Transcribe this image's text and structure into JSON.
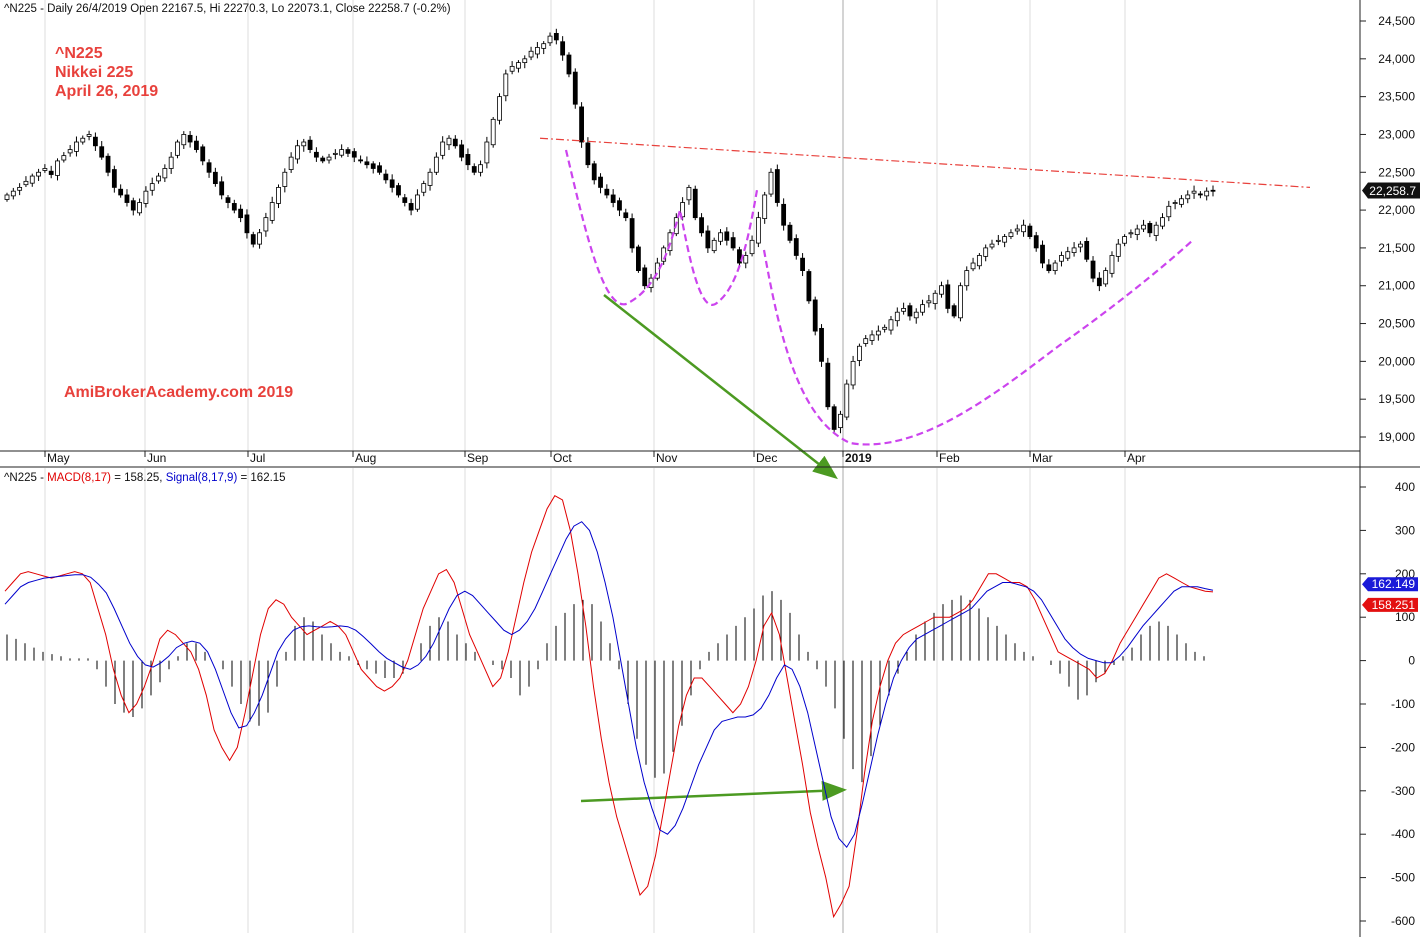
{
  "header": {
    "price": "^N225 - Daily 26/4/2019 Open 22167.5, Hi 22270.3, Lo 22073.1, Close 22258.7 (-0.2%)",
    "macd_prefix": "^N225 - ",
    "macd_name": "MACD(8,17)",
    "macd_value": " = 158.25, ",
    "signal_name": "Signal(8,17,9)",
    "signal_value": " = 162.15"
  },
  "annotations": {
    "ticker": "^N225",
    "name": "Nikkei 225",
    "date": "April 26, 2019",
    "watermark": "AmiBrokerAcademy.com   2019"
  },
  "colors": {
    "macd": "#e00000",
    "signal": "#0000cc",
    "histogram": "#000000",
    "trendline": "#e8413c",
    "cup_curve": "#cc44ee",
    "arrows": "#4c9a22",
    "label_text": "#e8413c"
  },
  "chart_data": [
    {
      "type": "candlestick",
      "title": "^N225 - Daily 26/4/2019",
      "x_labels": [
        "May",
        "Jun",
        "Jul",
        "Aug",
        "Sep",
        "Oct",
        "Nov",
        "Dec",
        "2019",
        "Feb",
        "Mar",
        "Apr"
      ],
      "y_ticks": [
        "19,000",
        "19,500",
        "20,000",
        "20,500",
        "21,000",
        "21,500",
        "22,000",
        "22,500",
        "23,000",
        "23,500",
        "24,000",
        "24,500"
      ],
      "ylim": [
        18800,
        24600
      ],
      "last_close_label": "22,258.7",
      "last_close": 22258.7,
      "closes": [
        22200,
        22250,
        22300,
        22380,
        22450,
        22500,
        22550,
        22470,
        22650,
        22720,
        22800,
        22900,
        22950,
        23000,
        22850,
        22700,
        22500,
        22300,
        22200,
        22100,
        22000,
        22100,
        22250,
        22350,
        22450,
        22550,
        22700,
        22900,
        23000,
        22900,
        22800,
        22650,
        22500,
        22350,
        22200,
        22100,
        22000,
        21900,
        21700,
        21550,
        21700,
        21900,
        22100,
        22300,
        22500,
        22700,
        22850,
        22900,
        22800,
        22700,
        22650,
        22700,
        22750,
        22800,
        22750,
        22700,
        22650,
        22600,
        22550,
        22500,
        22400,
        22300,
        22200,
        22100,
        22000,
        22200,
        22350,
        22500,
        22700,
        22900,
        22950,
        22850,
        22700,
        22600,
        22500,
        22600,
        22900,
        23200,
        23500,
        23800,
        23900,
        23950,
        24000,
        24100,
        24150,
        24200,
        24300,
        24250,
        24050,
        23800,
        23400,
        22900,
        22600,
        22400,
        22300,
        22200,
        22100,
        22000,
        21900,
        21500,
        21200,
        21000,
        21100,
        21300,
        21500,
        21700,
        21900,
        22100,
        22300,
        21900,
        21700,
        21500,
        21600,
        21700,
        21600,
        21500,
        21300,
        21400,
        21600,
        21900,
        22200,
        22500,
        22100,
        21800,
        21600,
        21400,
        21200,
        20800,
        20400,
        20000,
        19400,
        19100,
        19300,
        19700,
        20000,
        20200,
        20300,
        20350,
        20400,
        20450,
        20550,
        20650,
        20700,
        20600,
        20650,
        20750,
        20800,
        20900,
        21000,
        20700,
        20600,
        21000,
        21200,
        21300,
        21400,
        21500,
        21550,
        21600,
        21650,
        21700,
        21750,
        21800,
        21650,
        21500,
        21300,
        21200,
        21300,
        21400,
        21450,
        21500,
        21550,
        21350,
        21100,
        21000,
        21200,
        21400,
        21550,
        21650,
        21700,
        21750,
        21800,
        21700,
        21800,
        21900,
        22050,
        22100,
        22150,
        22200,
        22250,
        22200,
        22250,
        22258.7
      ],
      "horizontal_trendline": {
        "start": 22950,
        "end": 22300
      },
      "cup_annotation": {
        "left_shoulder_low": 20750,
        "head_low": 18900
      },
      "arrow_annotation": {
        "from": 20950,
        "to": 18650
      }
    },
    {
      "type": "line",
      "title": "^N225 - MACD(8,17) = 158.25, Signal(8,17,9) = 162.15",
      "y_ticks": [
        "400",
        "300",
        "200",
        "100",
        "0",
        "-100",
        "-200",
        "-300",
        "-400",
        "-500",
        "-600"
      ],
      "ylim": [
        -620,
        440
      ],
      "series": [
        {
          "name": "MACD(8,17)",
          "last_label": "158.251",
          "last": 158.251,
          "values": [
            160,
            180,
            200,
            205,
            200,
            195,
            190,
            195,
            200,
            205,
            200,
            180,
            120,
            60,
            -20,
            -80,
            -120,
            -100,
            -60,
            -10,
            50,
            70,
            60,
            40,
            20,
            -20,
            -80,
            -160,
            -200,
            -230,
            -200,
            -120,
            -30,
            60,
            120,
            140,
            130,
            100,
            80,
            60,
            70,
            80,
            90,
            80,
            60,
            20,
            -20,
            -40,
            -60,
            -70,
            -60,
            -40,
            0,
            60,
            120,
            160,
            200,
            210,
            180,
            120,
            60,
            20,
            -20,
            -60,
            -40,
            20,
            100,
            180,
            250,
            300,
            350,
            380,
            370,
            300,
            200,
            80,
            -60,
            -180,
            -280,
            -360,
            -420,
            -480,
            -540,
            -520,
            -450,
            -350,
            -250,
            -150,
            -80,
            -40,
            -40,
            -60,
            -80,
            -100,
            -120,
            -100,
            -60,
            0,
            80,
            110,
            60,
            -40,
            -140,
            -240,
            -350,
            -430,
            -500,
            -590,
            -560,
            -520,
            -400,
            -260,
            -140,
            -60,
            0,
            40,
            60,
            70,
            80,
            90,
            100,
            100,
            100,
            110,
            120,
            140,
            170,
            200,
            200,
            190,
            180,
            180,
            170,
            140,
            100,
            60,
            20,
            10,
            0,
            -10,
            -20,
            -40,
            -30,
            0,
            40,
            70,
            100,
            130,
            160,
            190,
            200,
            190,
            180,
            170,
            165,
            160,
            158.251
          ]
        },
        {
          "name": "Signal(8,17,9)",
          "last_label": "162.149",
          "last": 162.149,
          "values": [
            130,
            150,
            170,
            180,
            185,
            190,
            192,
            194,
            196,
            198,
            198,
            192,
            176,
            156,
            120,
            80,
            40,
            10,
            -10,
            -15,
            -5,
            10,
            30,
            40,
            45,
            40,
            20,
            -20,
            -70,
            -120,
            -155,
            -150,
            -120,
            -80,
            -30,
            20,
            50,
            70,
            78,
            80,
            78,
            77,
            78,
            80,
            78,
            70,
            55,
            38,
            20,
            5,
            -5,
            -15,
            -20,
            -10,
            10,
            40,
            80,
            120,
            150,
            160,
            150,
            130,
            110,
            90,
            70,
            60,
            70,
            90,
            120,
            160,
            200,
            240,
            280,
            310,
            320,
            300,
            250,
            180,
            100,
            0,
            -100,
            -200,
            -280,
            -340,
            -390,
            -400,
            -380,
            -340,
            -290,
            -240,
            -200,
            -160,
            -140,
            -135,
            -130,
            -130,
            -125,
            -110,
            -80,
            -40,
            -10,
            -20,
            -60,
            -120,
            -200,
            -280,
            -360,
            -410,
            -430,
            -400,
            -330,
            -250,
            -170,
            -100,
            -40,
            0,
            30,
            50,
            60,
            70,
            80,
            90,
            100,
            110,
            120,
            140,
            160,
            170,
            180,
            180,
            175,
            170,
            160,
            140,
            110,
            80,
            50,
            30,
            15,
            5,
            0,
            -5,
            -5,
            10,
            30,
            55,
            80,
            100,
            120,
            140,
            160,
            170,
            170,
            170,
            166,
            162.149
          ]
        }
      ],
      "histogram_approx": [
        60,
        50,
        40,
        30,
        20,
        15,
        10,
        5,
        5,
        5,
        -20,
        -60,
        -100,
        -120,
        -130,
        -110,
        -80,
        -50,
        -20,
        10,
        40,
        40,
        20,
        0,
        -20,
        -60,
        -100,
        -140,
        -150,
        -120,
        -60,
        20,
        80,
        100,
        90,
        60,
        40,
        20,
        10,
        -10,
        -20,
        -30,
        -40,
        -40,
        -30,
        0,
        40,
        80,
        100,
        90,
        60,
        40,
        20,
        0,
        -10,
        -20,
        -40,
        -80,
        -60,
        -20,
        40,
        80,
        110,
        130,
        140,
        130,
        90,
        40,
        -20,
        -100,
        -180,
        -240,
        -270,
        -260,
        -210,
        -150,
        -80,
        -20,
        20,
        40,
        60,
        80,
        100,
        120,
        150,
        160,
        140,
        110,
        60,
        20,
        -20,
        -60,
        -110,
        -180,
        -250,
        -280,
        -220,
        -150,
        -80,
        -30,
        20,
        60,
        90,
        110,
        130,
        140,
        150,
        140,
        120,
        100,
        80,
        60,
        40,
        20,
        10,
        0,
        -10,
        -30,
        -60,
        -90,
        -80,
        -50,
        -30,
        -10,
        10,
        30,
        60,
        80,
        90,
        80,
        60,
        40,
        20,
        10,
        0
      ]
    }
  ]
}
